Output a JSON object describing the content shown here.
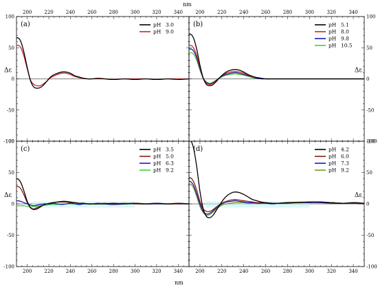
{
  "figure": {
    "x_unit_label": "nm",
    "y_label": "Δε"
  },
  "colors": {
    "black": "#000000",
    "red": "#d42020",
    "blue": "#1a1ab4",
    "green": "#3ad23a",
    "darkred": "#8b1a1a",
    "olive": "#6e9a1e",
    "cyan_noise": "#bff3f3"
  },
  "chart_data": [
    {
      "type": "line",
      "panel": "(a)",
      "x_ticks": [
        200,
        220,
        240,
        260,
        280,
        300,
        320,
        340
      ],
      "y_ticks": [
        100,
        50,
        0,
        -50,
        -100
      ],
      "xlim": [
        190,
        350
      ],
      "ylim": [
        -100,
        100
      ],
      "legend_position": "top-right",
      "legend": [
        "pH 3.0",
        "pH 9.0"
      ],
      "series": [
        {
          "name": "pH 3.0",
          "color": "black",
          "x": [
            188,
            191,
            194,
            197,
            200,
            203,
            206,
            209,
            212,
            215,
            218,
            221,
            224,
            228,
            232,
            236,
            240,
            244,
            248,
            252,
            256,
            260,
            266,
            272,
            280,
            290,
            300,
            310,
            320,
            330,
            340,
            350
          ],
          "y": [
            62,
            66,
            60,
            42,
            18,
            -3,
            -13,
            -15,
            -14,
            -10,
            -4,
            2,
            6,
            9,
            11,
            11,
            9,
            5,
            3,
            1,
            0,
            0,
            1,
            0,
            -1,
            0,
            -1,
            0,
            -1,
            0,
            -1,
            0
          ]
        },
        {
          "name": "pH 9.0",
          "color": "red",
          "x": [
            188,
            191,
            194,
            197,
            200,
            203,
            206,
            209,
            212,
            215,
            218,
            221,
            224,
            228,
            232,
            236,
            240,
            244,
            248,
            252,
            256,
            260,
            266,
            272,
            280,
            290,
            300,
            310,
            320,
            330,
            340,
            350
          ],
          "y": [
            50,
            54,
            50,
            36,
            16,
            -2,
            -9,
            -11,
            -11,
            -8,
            -4,
            1,
            4,
            7,
            9,
            9,
            7,
            4,
            2,
            1,
            0,
            0,
            0,
            0,
            -1,
            0,
            0,
            0,
            -1,
            0,
            0,
            0
          ]
        }
      ]
    },
    {
      "type": "line",
      "panel": "(b)",
      "x_ticks": [
        200,
        220,
        240,
        260,
        280,
        300,
        320,
        340
      ],
      "y_ticks": [
        100,
        50,
        0,
        -50,
        -100
      ],
      "xlim": [
        190,
        350
      ],
      "ylim": [
        -100,
        100
      ],
      "legend_position": "top-right",
      "legend": [
        "pH 5.1",
        "pH 8.0",
        "pH 9.8",
        "pH 10.5"
      ],
      "series": [
        {
          "name": "pH 5.1",
          "color": "black",
          "x": [
            188,
            191,
            194,
            197,
            200,
            203,
            206,
            209,
            212,
            215,
            218,
            221,
            224,
            228,
            232,
            236,
            240,
            244,
            248,
            252,
            256,
            260,
            266,
            272,
            280,
            290,
            300,
            310,
            320,
            330,
            340,
            350
          ],
          "y": [
            68,
            72,
            66,
            48,
            22,
            1,
            -9,
            -11,
            -9,
            -4,
            2,
            7,
            11,
            14,
            15,
            14,
            11,
            7,
            4,
            2,
            1,
            0,
            0,
            0,
            0,
            0,
            0,
            0,
            0,
            0,
            0,
            0
          ]
        },
        {
          "name": "pH 8.0",
          "color": "red",
          "x": [
            188,
            191,
            194,
            197,
            200,
            203,
            206,
            209,
            212,
            215,
            218,
            221,
            224,
            228,
            232,
            236,
            240,
            244,
            248,
            252,
            256,
            260,
            266,
            272,
            280,
            290,
            300,
            310,
            320,
            330,
            340,
            350
          ],
          "y": [
            50,
            54,
            50,
            38,
            18,
            1,
            -7,
            -9,
            -7,
            -3,
            2,
            6,
            9,
            11,
            12,
            11,
            9,
            6,
            3,
            2,
            1,
            0,
            0,
            0,
            0,
            0,
            0,
            0,
            0,
            0,
            0,
            0
          ]
        },
        {
          "name": "pH 9.8",
          "color": "blue",
          "x": [
            188,
            191,
            194,
            197,
            200,
            203,
            206,
            209,
            212,
            215,
            218,
            221,
            224,
            228,
            232,
            236,
            240,
            244,
            248,
            252,
            256,
            260,
            266,
            272,
            280,
            290,
            300,
            310,
            320,
            330,
            340,
            350
          ],
          "y": [
            44,
            48,
            45,
            34,
            16,
            1,
            -6,
            -8,
            -6,
            -2,
            2,
            5,
            7,
            9,
            10,
            9,
            7,
            5,
            3,
            1,
            0,
            0,
            0,
            0,
            0,
            0,
            0,
            0,
            0,
            0,
            0,
            0
          ]
        },
        {
          "name": "pH 10.5",
          "color": "green",
          "x": [
            188,
            191,
            194,
            197,
            200,
            203,
            206,
            209,
            212,
            215,
            218,
            221,
            224,
            228,
            232,
            236,
            240,
            244,
            248,
            252,
            256,
            260,
            266,
            272,
            280,
            290,
            300,
            310,
            320,
            330,
            340,
            350
          ],
          "y": [
            38,
            42,
            40,
            30,
            14,
            1,
            -5,
            -7,
            -5,
            -2,
            1,
            4,
            6,
            7,
            8,
            7,
            6,
            4,
            2,
            1,
            0,
            0,
            0,
            0,
            0,
            0,
            0,
            0,
            0,
            0,
            0,
            0
          ]
        }
      ]
    },
    {
      "type": "line",
      "panel": "(c)",
      "x_ticks": [
        200,
        220,
        240,
        260,
        280,
        300,
        320,
        340
      ],
      "y_ticks": [
        100,
        50,
        0,
        -50,
        -100
      ],
      "xlim": [
        190,
        350
      ],
      "ylim": [
        -100,
        100
      ],
      "legend_position": "top-right",
      "legend": [
        "pH 3.5",
        "pH 5.0",
        "pH 6.3",
        "pH 9.2"
      ],
      "series": [
        {
          "name": "pH 3.5",
          "color": "black",
          "x": [
            188,
            191,
            194,
            197,
            200,
            203,
            206,
            209,
            212,
            215,
            218,
            221,
            224,
            228,
            232,
            236,
            240,
            244,
            248,
            252,
            256,
            260,
            266,
            272,
            280,
            290,
            300,
            310,
            320,
            330,
            340,
            350
          ],
          "y": [
            38,
            40,
            34,
            20,
            4,
            -6,
            -9,
            -8,
            -5,
            -2,
            0,
            1,
            2,
            3,
            4,
            4,
            3,
            2,
            1,
            1,
            0,
            0,
            0,
            0,
            1,
            0,
            1,
            0,
            1,
            0,
            1,
            0
          ]
        },
        {
          "name": "pH 5.0",
          "color": "darkred",
          "x": [
            188,
            191,
            194,
            197,
            200,
            203,
            206,
            209,
            212,
            215,
            218,
            221,
            224,
            228,
            232,
            236,
            240,
            244,
            248,
            252,
            256,
            260,
            266,
            272,
            280,
            290,
            300,
            310,
            320,
            330,
            340,
            350
          ],
          "y": [
            26,
            28,
            24,
            14,
            2,
            -6,
            -8,
            -6,
            -4,
            -2,
            0,
            1,
            2,
            3,
            3,
            3,
            2,
            2,
            1,
            1,
            0,
            0,
            0,
            1,
            0,
            1,
            0,
            0,
            1,
            0,
            0,
            0
          ]
        },
        {
          "name": "pH 6.3",
          "color": "blue",
          "x": [
            188,
            191,
            194,
            197,
            200,
            203,
            206,
            209,
            212,
            215,
            218,
            221,
            224,
            228,
            232,
            236,
            240,
            244,
            248,
            252,
            256,
            260,
            266,
            272,
            280,
            290,
            300,
            310,
            320,
            330,
            340,
            350
          ],
          "y": [
            4,
            5,
            4,
            2,
            0,
            -2,
            -3,
            -2,
            -1,
            0,
            0,
            0,
            1,
            0,
            -1,
            0,
            1,
            0,
            -1,
            0,
            0,
            0,
            1,
            0,
            -1,
            0,
            1,
            0,
            0,
            0,
            0,
            0
          ]
        },
        {
          "name": "pH 9.2",
          "color": "green",
          "x": [
            188,
            191,
            194,
            197,
            200,
            203,
            206,
            209,
            212,
            215,
            218,
            221,
            224,
            228,
            232,
            236,
            240,
            244,
            248,
            252,
            256,
            260,
            266,
            272,
            280,
            290,
            300,
            310,
            320,
            330,
            340,
            350
          ],
          "y": [
            -2,
            -3,
            -3,
            -3,
            -4,
            -5,
            -4,
            -4,
            -3,
            -2,
            -2,
            -1,
            -1,
            -1,
            0,
            0,
            0,
            0,
            0,
            0,
            0,
            0,
            0,
            0,
            0,
            0,
            0,
            0,
            0,
            0,
            0,
            0
          ]
        }
      ]
    },
    {
      "type": "line",
      "panel": "(d)",
      "x_ticks": [
        200,
        220,
        240,
        260,
        280,
        300,
        320,
        340
      ],
      "y_ticks": [
        100,
        50,
        0,
        -50,
        -100
      ],
      "xlim": [
        190,
        350
      ],
      "ylim": [
        -100,
        100
      ],
      "legend_position": "top-right",
      "legend": [
        "pH 4.2",
        "pH 6.0",
        "pH 7.3",
        "pH 9.2"
      ],
      "series": [
        {
          "name": "pH 4.2",
          "color": "black",
          "x": [
            188,
            191,
            194,
            197,
            200,
            203,
            206,
            209,
            212,
            215,
            218,
            221,
            224,
            228,
            232,
            236,
            240,
            244,
            248,
            252,
            256,
            260,
            266,
            272,
            280,
            290,
            300,
            310,
            320,
            330,
            340,
            350
          ],
          "y": [
            98,
            102,
            90,
            60,
            20,
            -8,
            -20,
            -22,
            -18,
            -10,
            -2,
            6,
            12,
            17,
            19,
            18,
            15,
            11,
            7,
            5,
            3,
            2,
            1,
            1,
            2,
            2,
            3,
            3,
            2,
            1,
            2,
            1
          ]
        },
        {
          "name": "pH 6.0",
          "color": "darkred",
          "x": [
            188,
            191,
            194,
            197,
            200,
            203,
            206,
            209,
            212,
            215,
            218,
            221,
            224,
            228,
            232,
            236,
            240,
            244,
            248,
            252,
            256,
            260,
            266,
            272,
            280,
            290,
            300,
            310,
            320,
            330,
            340,
            350
          ],
          "y": [
            40,
            42,
            36,
            22,
            4,
            -8,
            -12,
            -12,
            -9,
            -5,
            -1,
            2,
            4,
            6,
            7,
            6,
            5,
            4,
            3,
            2,
            2,
            1,
            1,
            1,
            2,
            2,
            3,
            3,
            2,
            1,
            1,
            0
          ]
        },
        {
          "name": "pH 7.3",
          "color": "blue",
          "x": [
            188,
            191,
            194,
            197,
            200,
            203,
            206,
            209,
            212,
            215,
            218,
            221,
            224,
            228,
            232,
            236,
            240,
            244,
            248,
            252,
            256,
            260,
            266,
            272,
            280,
            290,
            300,
            310,
            320,
            330,
            340,
            350
          ],
          "y": [
            34,
            36,
            30,
            16,
            0,
            -12,
            -16,
            -15,
            -11,
            -6,
            -2,
            1,
            3,
            4,
            5,
            4,
            3,
            2,
            2,
            1,
            1,
            1,
            0,
            1,
            1,
            2,
            2,
            2,
            1,
            1,
            1,
            0
          ]
        },
        {
          "name": "pH 9.2",
          "color": "olive",
          "x": [
            188,
            191,
            194,
            197,
            200,
            203,
            206,
            209,
            212,
            215,
            218,
            221,
            224,
            228,
            232,
            236,
            240,
            244,
            248,
            252,
            256,
            260,
            266,
            272,
            280,
            290,
            300,
            310,
            320,
            330,
            340,
            350
          ],
          "y": [
            30,
            32,
            26,
            12,
            -4,
            -14,
            -18,
            -17,
            -13,
            -8,
            -4,
            -1,
            0,
            1,
            2,
            2,
            2,
            1,
            1,
            1,
            1,
            1,
            1,
            1,
            2,
            3,
            3,
            3,
            2,
            1,
            1,
            0
          ]
        }
      ]
    }
  ]
}
